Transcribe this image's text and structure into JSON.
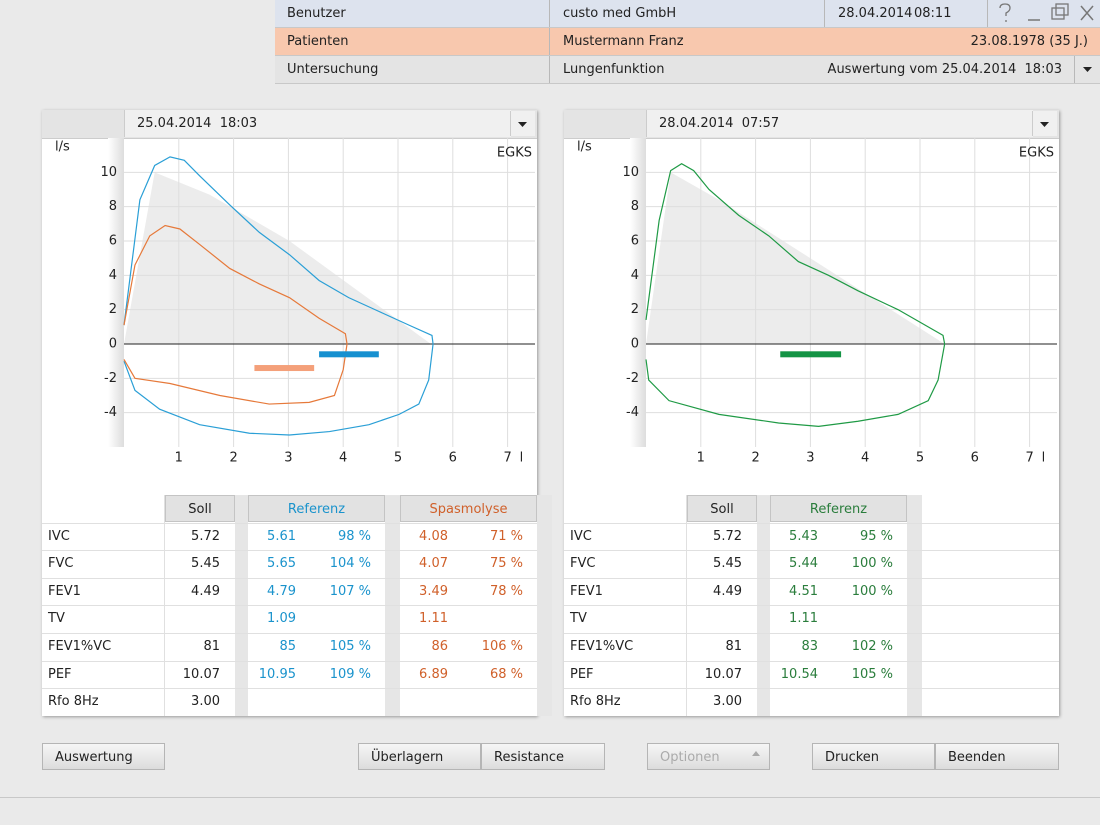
{
  "header": {
    "rows": [
      {
        "label": "Benutzer",
        "value": "custo med GmbH",
        "date": "28.04.2014",
        "time": "08:11"
      },
      {
        "label": "Patienten",
        "value": "Mustermann Franz",
        "info": "23.08.1978 (35 J.)"
      },
      {
        "label": "Untersuchung",
        "value": "Lungenfunktion",
        "info": "Auswertung vom 25.04.2014  18:03"
      }
    ]
  },
  "panels": [
    {
      "date": "25.04.2014  18:03"
    },
    {
      "date": "28.04.2014  07:57"
    }
  ],
  "chart_data": [
    {
      "type": "line",
      "corner_label": "EGKS",
      "ylabel": "l/s",
      "xlabel": "l",
      "xlim": [
        0,
        7.5
      ],
      "ylim": [
        -6,
        12
      ],
      "xticks": [
        1,
        2,
        3,
        4,
        5,
        6,
        7
      ],
      "yticks": [
        -4,
        -2,
        0,
        2,
        4,
        6,
        8,
        10
      ],
      "grid": true,
      "predicted": {
        "color": "#ececec",
        "x": [
          0,
          0.56,
          1.56,
          3.02,
          5.6
        ],
        "values": [
          0,
          10,
          8.7,
          6.0,
          0
        ]
      },
      "series": [
        {
          "color": "#2a9fd6",
          "x": [
            0,
            0.29,
            0.56,
            0.84,
            1.1,
            1.38,
            1.93,
            2.47,
            3.02,
            3.56,
            4.1,
            4.65,
            5.2,
            5.62,
            5.64,
            5.56,
            5.38,
            5.02,
            4.47,
            3.75,
            3.02,
            2.29,
            1.38,
            0.65,
            0.2,
            0
          ],
          "values": [
            1.1,
            8.4,
            10.4,
            10.9,
            10.7,
            9.8,
            8.1,
            6.5,
            5.2,
            3.7,
            2.7,
            1.9,
            1.1,
            0.5,
            0,
            -2.1,
            -3.5,
            -4.1,
            -4.7,
            -5.1,
            -5.3,
            -5.2,
            -4.7,
            -3.8,
            -2.7,
            -1.0
          ]
        },
        {
          "color": "#e6793a",
          "x": [
            0,
            0.2,
            0.47,
            0.75,
            1.02,
            1.38,
            1.93,
            2.47,
            3.02,
            3.56,
            4.04,
            4.07,
            4.0,
            3.84,
            3.38,
            2.65,
            1.75,
            0.84,
            0.2,
            0
          ],
          "values": [
            1.1,
            4.6,
            6.3,
            6.9,
            6.7,
            5.8,
            4.4,
            3.5,
            2.7,
            1.5,
            0.6,
            0,
            -1.5,
            -3.0,
            -3.4,
            -3.5,
            -3.0,
            -2.3,
            -2.0,
            -0.9
          ]
        }
      ],
      "markers": [
        {
          "color": "#1690d0",
          "y": -0.6,
          "x": [
            3.56,
            4.65
          ]
        },
        {
          "color": "#f4a07a",
          "y": -1.4,
          "x": [
            2.38,
            3.47
          ]
        }
      ]
    },
    {
      "type": "line",
      "corner_label": "EGKS",
      "ylabel": "l/s",
      "xlabel": "l",
      "xlim": [
        0,
        7.5
      ],
      "ylim": [
        -6,
        12
      ],
      "xticks": [
        1,
        2,
        3,
        4,
        5,
        6,
        7
      ],
      "yticks": [
        -4,
        -2,
        0,
        2,
        4,
        6,
        8,
        10
      ],
      "grid": true,
      "predicted": {
        "color": "#ececec",
        "x": [
          0,
          0.45,
          1.33,
          5.45
        ],
        "values": [
          0,
          10,
          8.4,
          0
        ]
      },
      "series": [
        {
          "color": "#1f9a45",
          "x": [
            0,
            0.24,
            0.45,
            0.65,
            0.87,
            1.15,
            1.69,
            2.24,
            2.78,
            3.33,
            3.87,
            4.6,
            5.42,
            5.45,
            5.33,
            5.15,
            4.6,
            3.87,
            3.15,
            2.42,
            1.33,
            0.42,
            0.05,
            0
          ],
          "values": [
            1.4,
            7.2,
            10.1,
            10.5,
            10.1,
            9.0,
            7.5,
            6.3,
            4.8,
            4.0,
            3.1,
            2.0,
            0.5,
            0,
            -2.1,
            -3.3,
            -4.1,
            -4.5,
            -4.8,
            -4.6,
            -4.1,
            -3.3,
            -2.1,
            -0.9
          ]
        }
      ],
      "markers": [
        {
          "color": "#149445",
          "y": -0.6,
          "x": [
            2.45,
            3.56
          ]
        }
      ]
    }
  ],
  "tables": [
    {
      "columns": [
        "Soll",
        "Referenz",
        "Spasmolyse"
      ],
      "colors": [
        "#222222",
        "#1a93cc",
        "#d0602a"
      ],
      "rows": [
        {
          "label": "IVC",
          "cells": [
            "5.72",
            "5.61",
            "98 %",
            "4.08",
            "71 %"
          ]
        },
        {
          "label": "FVC",
          "cells": [
            "5.45",
            "5.65",
            "104 %",
            "4.07",
            "75 %"
          ]
        },
        {
          "label": "FEV1",
          "cells": [
            "4.49",
            "4.79",
            "107 %",
            "3.49",
            "78 %"
          ]
        },
        {
          "label": "TV",
          "cells": [
            null,
            "1.09",
            null,
            "1.11",
            null
          ]
        },
        {
          "label": "FEV1%VC",
          "cells": [
            "81",
            "85",
            "105 %",
            "86",
            "106 %"
          ]
        },
        {
          "label": "PEF",
          "cells": [
            "10.07",
            "10.95",
            "109 %",
            "6.89",
            "68 %"
          ]
        },
        {
          "label": "Rfo 8Hz",
          "cells": [
            "3.00",
            null,
            null,
            null,
            null
          ]
        }
      ]
    },
    {
      "columns": [
        "Soll",
        "Referenz"
      ],
      "colors": [
        "#222222",
        "#2a7d3c"
      ],
      "rows": [
        {
          "label": "IVC",
          "cells": [
            "5.72",
            "5.43",
            "95 %"
          ]
        },
        {
          "label": "FVC",
          "cells": [
            "5.45",
            "5.44",
            "100 %"
          ]
        },
        {
          "label": "FEV1",
          "cells": [
            "4.49",
            "4.51",
            "100 %"
          ]
        },
        {
          "label": "TV",
          "cells": [
            null,
            "1.11",
            null
          ]
        },
        {
          "label": "FEV1%VC",
          "cells": [
            "81",
            "83",
            "102 %"
          ]
        },
        {
          "label": "PEF",
          "cells": [
            "10.07",
            "10.54",
            "105 %"
          ]
        },
        {
          "label": "Rfo 8Hz",
          "cells": [
            "3.00",
            null,
            null
          ]
        }
      ]
    }
  ],
  "buttons": [
    "Auswertung",
    "Überlagern",
    "Resistance",
    "Optionen",
    "Drucken",
    "Beenden"
  ]
}
